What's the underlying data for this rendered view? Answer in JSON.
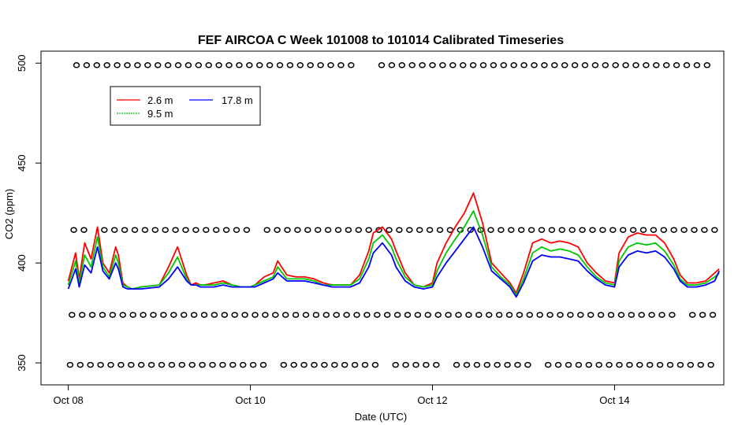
{
  "chart_data": {
    "type": "line",
    "title": "FEF AIRCOA C  Week 101008 to 101014  Calibrated Timeseries",
    "xlabel": "Date (UTC)",
    "ylabel": "CO2 (ppm)",
    "x_unit": "days from Oct 08 00:00 UTC",
    "xlim": [
      -0.3,
      7.2
    ],
    "ylim": [
      339,
      506
    ],
    "x_ticks": [
      {
        "pos": 0,
        "label": "Oct 08"
      },
      {
        "pos": 2,
        "label": "Oct 10"
      },
      {
        "pos": 4,
        "label": "Oct 12"
      },
      {
        "pos": 6,
        "label": "Oct 14"
      }
    ],
    "y_ticks": [
      {
        "value": 350,
        "label": "350"
      },
      {
        "value": 400,
        "label": "400"
      },
      {
        "value": 450,
        "label": "450"
      },
      {
        "value": 500,
        "label": "500"
      }
    ],
    "grid": false,
    "legend_position": "top-left",
    "series": [
      {
        "name": "2.6 m",
        "color": "#ff0000",
        "x": [
          0,
          0.08,
          0.12,
          0.18,
          0.25,
          0.32,
          0.38,
          0.45,
          0.52,
          0.55,
          0.6,
          0.65,
          0.7,
          0.8,
          1.0,
          1.1,
          1.2,
          1.3,
          1.35,
          1.4,
          1.45,
          1.5,
          1.6,
          1.7,
          1.8,
          1.9,
          2.0,
          2.05,
          2.15,
          2.25,
          2.3,
          2.4,
          2.5,
          2.6,
          2.7,
          2.8,
          2.9,
          3.0,
          3.1,
          3.2,
          3.3,
          3.35,
          3.45,
          3.55,
          3.6,
          3.7,
          3.8,
          3.9,
          4.0,
          4.05,
          4.15,
          4.25,
          4.35,
          4.45,
          4.55,
          4.65,
          4.75,
          4.85,
          4.92,
          5.0,
          5.1,
          5.2,
          5.3,
          5.4,
          5.5,
          5.6,
          5.7,
          5.8,
          5.9,
          6.0,
          6.05,
          6.15,
          6.25,
          6.35,
          6.45,
          6.55,
          6.65,
          6.72,
          6.8,
          6.9,
          7.0,
          7.1,
          7.15
        ],
        "y": [
          391,
          405,
          392,
          410,
          402,
          418,
          400,
          395,
          408,
          404,
          390,
          388,
          387,
          388,
          389,
          398,
          408,
          394,
          389,
          390,
          389,
          389,
          390,
          391,
          389,
          388,
          388,
          389,
          393,
          395,
          401,
          394,
          393,
          393,
          392,
          390,
          389,
          389,
          389,
          394,
          406,
          415,
          418,
          412,
          406,
          395,
          389,
          388,
          390,
          400,
          410,
          418,
          425,
          435,
          420,
          400,
          395,
          390,
          385,
          395,
          410,
          412,
          410,
          411,
          410,
          408,
          400,
          395,
          391,
          390,
          405,
          413,
          415,
          414,
          414,
          410,
          402,
          394,
          390,
          390,
          391,
          395,
          397
        ]
      },
      {
        "name": "9.5 m",
        "color": "#00c800",
        "x": [
          0,
          0.08,
          0.12,
          0.18,
          0.25,
          0.32,
          0.38,
          0.45,
          0.52,
          0.55,
          0.6,
          0.65,
          0.7,
          0.8,
          1.0,
          1.1,
          1.2,
          1.3,
          1.35,
          1.4,
          1.45,
          1.5,
          1.6,
          1.7,
          1.8,
          1.9,
          2.0,
          2.05,
          2.15,
          2.25,
          2.3,
          2.4,
          2.5,
          2.6,
          2.7,
          2.8,
          2.9,
          3.0,
          3.1,
          3.2,
          3.3,
          3.35,
          3.45,
          3.55,
          3.6,
          3.7,
          3.8,
          3.9,
          4.0,
          4.05,
          4.15,
          4.25,
          4.35,
          4.45,
          4.55,
          4.65,
          4.75,
          4.85,
          4.92,
          5.0,
          5.1,
          5.2,
          5.3,
          5.4,
          5.5,
          5.6,
          5.7,
          5.8,
          5.9,
          6.0,
          6.05,
          6.15,
          6.25,
          6.35,
          6.45,
          6.55,
          6.65,
          6.72,
          6.8,
          6.9,
          7.0,
          7.1,
          7.15
        ],
        "y": [
          389,
          401,
          390,
          404,
          398,
          413,
          398,
          393,
          404,
          400,
          389,
          388,
          387,
          388,
          389,
          395,
          403,
          392,
          389,
          389,
          389,
          389,
          389,
          390,
          389,
          388,
          388,
          389,
          391,
          393,
          398,
          392,
          392,
          392,
          391,
          389,
          389,
          389,
          389,
          392,
          402,
          410,
          414,
          408,
          402,
          393,
          389,
          388,
          389,
          396,
          405,
          412,
          418,
          426,
          414,
          398,
          393,
          389,
          384,
          392,
          405,
          408,
          406,
          407,
          406,
          404,
          398,
          393,
          390,
          389,
          401,
          408,
          410,
          409,
          410,
          406,
          399,
          392,
          389,
          389,
          390,
          393,
          395
        ]
      },
      {
        "name": "17.8 m",
        "color": "#0000ff",
        "x": [
          0,
          0.08,
          0.12,
          0.18,
          0.25,
          0.32,
          0.38,
          0.45,
          0.52,
          0.55,
          0.6,
          0.65,
          0.7,
          0.8,
          1.0,
          1.1,
          1.2,
          1.3,
          1.35,
          1.4,
          1.45,
          1.5,
          1.6,
          1.7,
          1.8,
          1.9,
          2.0,
          2.05,
          2.15,
          2.25,
          2.3,
          2.4,
          2.5,
          2.6,
          2.7,
          2.8,
          2.9,
          3.0,
          3.1,
          3.2,
          3.3,
          3.35,
          3.45,
          3.55,
          3.6,
          3.7,
          3.8,
          3.9,
          4.0,
          4.05,
          4.15,
          4.25,
          4.35,
          4.45,
          4.55,
          4.65,
          4.75,
          4.85,
          4.92,
          5.0,
          5.1,
          5.2,
          5.3,
          5.4,
          5.5,
          5.6,
          5.7,
          5.8,
          5.9,
          6.0,
          6.05,
          6.15,
          6.25,
          6.35,
          6.45,
          6.55,
          6.65,
          6.72,
          6.8,
          6.9,
          7.0,
          7.1,
          7.15
        ],
        "y": [
          387,
          397,
          388,
          399,
          395,
          408,
          396,
          392,
          400,
          397,
          388,
          387,
          387,
          387,
          388,
          392,
          398,
          391,
          389,
          389,
          388,
          388,
          388,
          389,
          388,
          388,
          388,
          388,
          390,
          392,
          395,
          391,
          391,
          391,
          390,
          389,
          388,
          388,
          388,
          390,
          398,
          405,
          410,
          404,
          398,
          391,
          388,
          387,
          388,
          393,
          400,
          406,
          412,
          418,
          408,
          396,
          392,
          388,
          383,
          390,
          401,
          404,
          403,
          403,
          402,
          401,
          396,
          392,
          389,
          388,
          398,
          404,
          406,
          405,
          406,
          403,
          397,
          391,
          388,
          388,
          389,
          391,
          396
        ]
      }
    ],
    "flag_rows": [
      {
        "y": 499,
        "x_start": 0.09,
        "x_end": 7.11,
        "gaps": [
          [
            3.21,
            3.33
          ]
        ]
      },
      {
        "y": 416.5,
        "x_start": 0.06,
        "x_end": 7.11,
        "gaps": [
          [
            0.18,
            0.3
          ],
          [
            2.02,
            2.16
          ]
        ]
      },
      {
        "y": 374,
        "x_start": 0.04,
        "x_end": 7.11,
        "gaps": [
          [
            4.18,
            4.27
          ],
          [
            6.68,
            6.78
          ]
        ]
      },
      {
        "y": 349,
        "x_start": 0.02,
        "x_end": 7.12,
        "gaps": [
          [
            2.2,
            2.32
          ],
          [
            3.38,
            3.5
          ],
          [
            4.08,
            4.2
          ],
          [
            5.08,
            5.2
          ]
        ]
      }
    ]
  }
}
